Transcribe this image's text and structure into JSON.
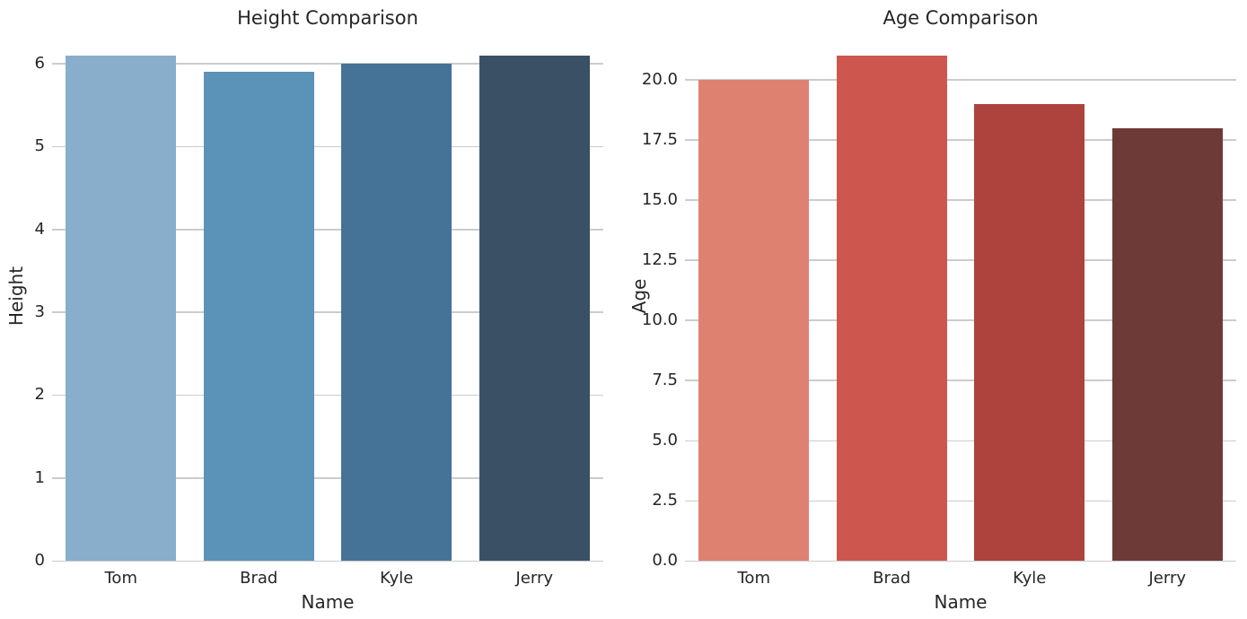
{
  "colors": {
    "background": "#ffffff",
    "grid": "#cccccc",
    "text": "#262626"
  },
  "chart_data": [
    {
      "type": "bar",
      "title": "Height Comparison",
      "xlabel": "Name",
      "ylabel": "Height",
      "categories": [
        "Tom",
        "Brad",
        "Kyle",
        "Jerry"
      ],
      "values": [
        6.1,
        5.9,
        6.0,
        6.1
      ],
      "ylim": [
        0,
        6.4
      ],
      "yticks": [
        {
          "v": 0,
          "label": "0"
        },
        {
          "v": 1,
          "label": "1"
        },
        {
          "v": 2,
          "label": "2"
        },
        {
          "v": 3,
          "label": "3"
        },
        {
          "v": 4,
          "label": "4"
        },
        {
          "v": 5,
          "label": "5"
        },
        {
          "v": 6,
          "label": "6"
        }
      ],
      "bar_colors": [
        "#88aecb",
        "#5b92b8",
        "#447397",
        "#3a5064"
      ],
      "grid": true,
      "legend": false
    },
    {
      "type": "bar",
      "title": "Age Comparison",
      "xlabel": "Name",
      "ylabel": "Age",
      "categories": [
        "Tom",
        "Brad",
        "Kyle",
        "Jerry"
      ],
      "values": [
        20,
        21,
        19,
        18
      ],
      "ylim": [
        0,
        22.05
      ],
      "yticks": [
        {
          "v": 0,
          "label": "0.0"
        },
        {
          "v": 2.5,
          "label": "2.5"
        },
        {
          "v": 5,
          "label": "5.0"
        },
        {
          "v": 7.5,
          "label": "7.5"
        },
        {
          "v": 10,
          "label": "10.0"
        },
        {
          "v": 12.5,
          "label": "12.5"
        },
        {
          "v": 15,
          "label": "15.0"
        },
        {
          "v": 17.5,
          "label": "17.5"
        },
        {
          "v": 20,
          "label": "20.0"
        }
      ],
      "bar_colors": [
        "#df8170",
        "#cd574e",
        "#ae423c",
        "#6e3a37"
      ],
      "grid": true,
      "legend": false
    }
  ]
}
